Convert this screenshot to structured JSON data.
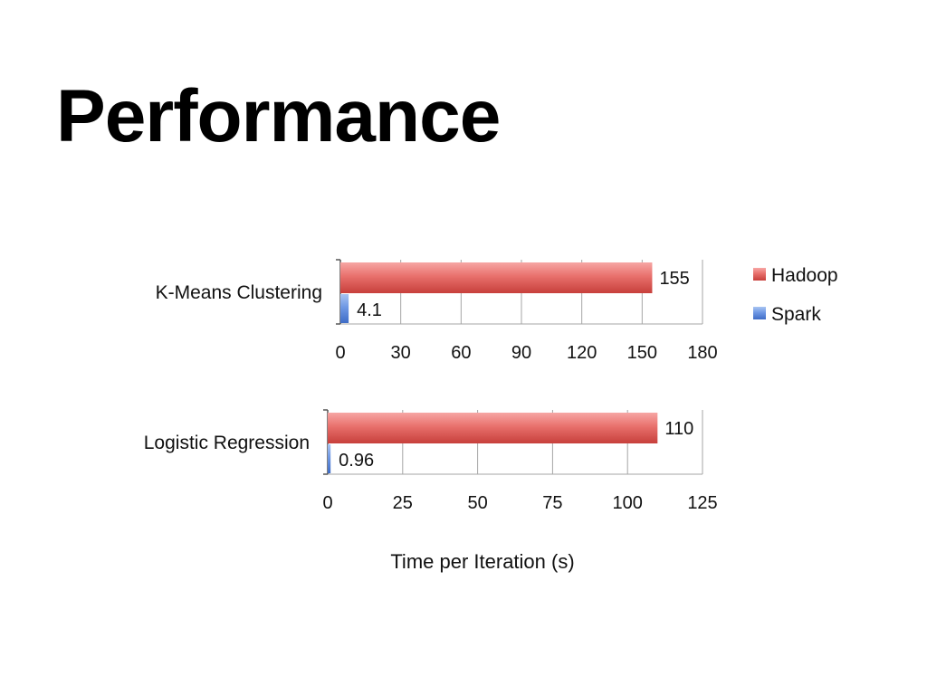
{
  "slide": {
    "title": "Performance"
  },
  "colors": {
    "hadoop": "#d9534f",
    "spark": "#4f81d9",
    "grid": "#a6a6a6"
  },
  "legend": {
    "position": "right",
    "entries": [
      {
        "name": "Hadoop",
        "color": "#d9534f"
      },
      {
        "name": "Spark",
        "color": "#4f81d9"
      }
    ]
  },
  "xlabel": "Time per Iteration (s)",
  "chart_data": [
    {
      "type": "bar",
      "orientation": "horizontal",
      "category": "K-Means Clustering",
      "series": [
        {
          "name": "Hadoop",
          "value": 155,
          "label": "155"
        },
        {
          "name": "Spark",
          "value": 4.1,
          "label": "4.1"
        }
      ],
      "xlim": [
        0,
        180
      ],
      "ticks": [
        "0",
        "30",
        "60",
        "90",
        "120",
        "150",
        "180"
      ],
      "grid": true
    },
    {
      "type": "bar",
      "orientation": "horizontal",
      "category": "Logistic Regression",
      "series": [
        {
          "name": "Hadoop",
          "value": 110,
          "label": "110"
        },
        {
          "name": "Spark",
          "value": 0.96,
          "label": "0.96"
        }
      ],
      "xlim": [
        0,
        125
      ],
      "ticks": [
        "0",
        "25",
        "50",
        "75",
        "100",
        "125"
      ],
      "grid": true
    }
  ]
}
